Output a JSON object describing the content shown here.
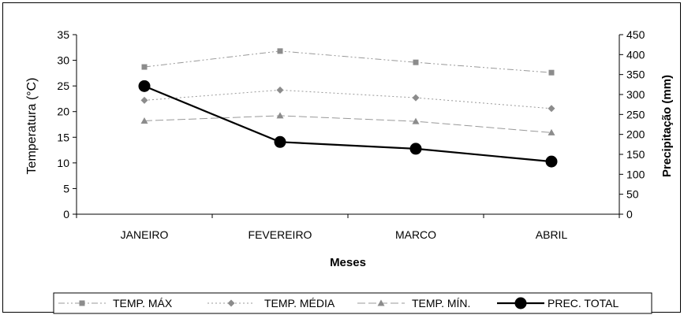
{
  "chart_data": {
    "type": "line",
    "categories": [
      "JANEIRO",
      "FEVEREIRO",
      "MARCO",
      "ABRIL"
    ],
    "xlabel": "Meses",
    "ylabel_left": "Temperatura (°C)",
    "ylabel_right": "Precipitação (mm)",
    "ylim_left": [
      0,
      35
    ],
    "ylim_right": [
      0,
      450
    ],
    "yticks_left": [
      0,
      5,
      10,
      15,
      20,
      25,
      30,
      35
    ],
    "yticks_right": [
      0,
      50,
      100,
      150,
      200,
      250,
      300,
      350,
      400,
      450
    ],
    "grid": false,
    "legend_position": "bottom",
    "series": [
      {
        "name": "TEMP. MÁX",
        "axis": "left",
        "values": [
          28.7,
          31.8,
          29.6,
          27.6
        ],
        "color": "#999999",
        "marker": "square",
        "dash": "8,3,2,3,2,3"
      },
      {
        "name": "TEMP. MÉDIA",
        "axis": "left",
        "values": [
          22.2,
          24.2,
          22.7,
          20.6
        ],
        "color": "#999999",
        "marker": "diamond",
        "dash": "2,3"
      },
      {
        "name": "TEMP. MÍN.",
        "axis": "left",
        "values": [
          18.2,
          19.2,
          18.1,
          15.9
        ],
        "color": "#999999",
        "marker": "triangle",
        "dash": "10,4"
      },
      {
        "name": "PREC. TOTAL",
        "axis": "right",
        "values": [
          321,
          181,
          164,
          132
        ],
        "color": "#000000",
        "marker": "circle",
        "dash": ""
      }
    ]
  }
}
